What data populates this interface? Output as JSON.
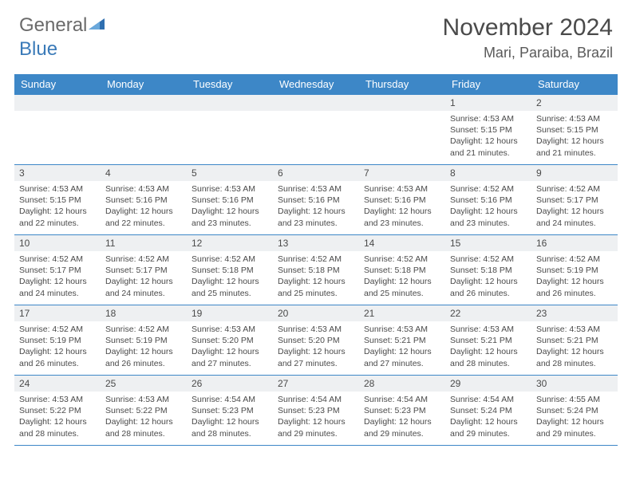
{
  "branding": {
    "text1": "General",
    "text2": "Blue",
    "logo_color": "#2f6fb0"
  },
  "header": {
    "month_title": "November 2024",
    "location": "Mari, Paraiba, Brazil"
  },
  "colors": {
    "header_bg": "#3d87c7",
    "header_text": "#ffffff",
    "daynum_bg": "#eef0f2",
    "text": "#4a4a4a",
    "border": "#3d87c7"
  },
  "weekdays": [
    "Sunday",
    "Monday",
    "Tuesday",
    "Wednesday",
    "Thursday",
    "Friday",
    "Saturday"
  ],
  "weeks": [
    [
      {
        "n": "",
        "sunrise": "",
        "sunset": "",
        "daylight": ""
      },
      {
        "n": "",
        "sunrise": "",
        "sunset": "",
        "daylight": ""
      },
      {
        "n": "",
        "sunrise": "",
        "sunset": "",
        "daylight": ""
      },
      {
        "n": "",
        "sunrise": "",
        "sunset": "",
        "daylight": ""
      },
      {
        "n": "",
        "sunrise": "",
        "sunset": "",
        "daylight": ""
      },
      {
        "n": "1",
        "sunrise": "Sunrise: 4:53 AM",
        "sunset": "Sunset: 5:15 PM",
        "daylight": "Daylight: 12 hours and 21 minutes."
      },
      {
        "n": "2",
        "sunrise": "Sunrise: 4:53 AM",
        "sunset": "Sunset: 5:15 PM",
        "daylight": "Daylight: 12 hours and 21 minutes."
      }
    ],
    [
      {
        "n": "3",
        "sunrise": "Sunrise: 4:53 AM",
        "sunset": "Sunset: 5:15 PM",
        "daylight": "Daylight: 12 hours and 22 minutes."
      },
      {
        "n": "4",
        "sunrise": "Sunrise: 4:53 AM",
        "sunset": "Sunset: 5:16 PM",
        "daylight": "Daylight: 12 hours and 22 minutes."
      },
      {
        "n": "5",
        "sunrise": "Sunrise: 4:53 AM",
        "sunset": "Sunset: 5:16 PM",
        "daylight": "Daylight: 12 hours and 23 minutes."
      },
      {
        "n": "6",
        "sunrise": "Sunrise: 4:53 AM",
        "sunset": "Sunset: 5:16 PM",
        "daylight": "Daylight: 12 hours and 23 minutes."
      },
      {
        "n": "7",
        "sunrise": "Sunrise: 4:53 AM",
        "sunset": "Sunset: 5:16 PM",
        "daylight": "Daylight: 12 hours and 23 minutes."
      },
      {
        "n": "8",
        "sunrise": "Sunrise: 4:52 AM",
        "sunset": "Sunset: 5:16 PM",
        "daylight": "Daylight: 12 hours and 23 minutes."
      },
      {
        "n": "9",
        "sunrise": "Sunrise: 4:52 AM",
        "sunset": "Sunset: 5:17 PM",
        "daylight": "Daylight: 12 hours and 24 minutes."
      }
    ],
    [
      {
        "n": "10",
        "sunrise": "Sunrise: 4:52 AM",
        "sunset": "Sunset: 5:17 PM",
        "daylight": "Daylight: 12 hours and 24 minutes."
      },
      {
        "n": "11",
        "sunrise": "Sunrise: 4:52 AM",
        "sunset": "Sunset: 5:17 PM",
        "daylight": "Daylight: 12 hours and 24 minutes."
      },
      {
        "n": "12",
        "sunrise": "Sunrise: 4:52 AM",
        "sunset": "Sunset: 5:18 PM",
        "daylight": "Daylight: 12 hours and 25 minutes."
      },
      {
        "n": "13",
        "sunrise": "Sunrise: 4:52 AM",
        "sunset": "Sunset: 5:18 PM",
        "daylight": "Daylight: 12 hours and 25 minutes."
      },
      {
        "n": "14",
        "sunrise": "Sunrise: 4:52 AM",
        "sunset": "Sunset: 5:18 PM",
        "daylight": "Daylight: 12 hours and 25 minutes."
      },
      {
        "n": "15",
        "sunrise": "Sunrise: 4:52 AM",
        "sunset": "Sunset: 5:18 PM",
        "daylight": "Daylight: 12 hours and 26 minutes."
      },
      {
        "n": "16",
        "sunrise": "Sunrise: 4:52 AM",
        "sunset": "Sunset: 5:19 PM",
        "daylight": "Daylight: 12 hours and 26 minutes."
      }
    ],
    [
      {
        "n": "17",
        "sunrise": "Sunrise: 4:52 AM",
        "sunset": "Sunset: 5:19 PM",
        "daylight": "Daylight: 12 hours and 26 minutes."
      },
      {
        "n": "18",
        "sunrise": "Sunrise: 4:52 AM",
        "sunset": "Sunset: 5:19 PM",
        "daylight": "Daylight: 12 hours and 26 minutes."
      },
      {
        "n": "19",
        "sunrise": "Sunrise: 4:53 AM",
        "sunset": "Sunset: 5:20 PM",
        "daylight": "Daylight: 12 hours and 27 minutes."
      },
      {
        "n": "20",
        "sunrise": "Sunrise: 4:53 AM",
        "sunset": "Sunset: 5:20 PM",
        "daylight": "Daylight: 12 hours and 27 minutes."
      },
      {
        "n": "21",
        "sunrise": "Sunrise: 4:53 AM",
        "sunset": "Sunset: 5:21 PM",
        "daylight": "Daylight: 12 hours and 27 minutes."
      },
      {
        "n": "22",
        "sunrise": "Sunrise: 4:53 AM",
        "sunset": "Sunset: 5:21 PM",
        "daylight": "Daylight: 12 hours and 28 minutes."
      },
      {
        "n": "23",
        "sunrise": "Sunrise: 4:53 AM",
        "sunset": "Sunset: 5:21 PM",
        "daylight": "Daylight: 12 hours and 28 minutes."
      }
    ],
    [
      {
        "n": "24",
        "sunrise": "Sunrise: 4:53 AM",
        "sunset": "Sunset: 5:22 PM",
        "daylight": "Daylight: 12 hours and 28 minutes."
      },
      {
        "n": "25",
        "sunrise": "Sunrise: 4:53 AM",
        "sunset": "Sunset: 5:22 PM",
        "daylight": "Daylight: 12 hours and 28 minutes."
      },
      {
        "n": "26",
        "sunrise": "Sunrise: 4:54 AM",
        "sunset": "Sunset: 5:23 PM",
        "daylight": "Daylight: 12 hours and 28 minutes."
      },
      {
        "n": "27",
        "sunrise": "Sunrise: 4:54 AM",
        "sunset": "Sunset: 5:23 PM",
        "daylight": "Daylight: 12 hours and 29 minutes."
      },
      {
        "n": "28",
        "sunrise": "Sunrise: 4:54 AM",
        "sunset": "Sunset: 5:23 PM",
        "daylight": "Daylight: 12 hours and 29 minutes."
      },
      {
        "n": "29",
        "sunrise": "Sunrise: 4:54 AM",
        "sunset": "Sunset: 5:24 PM",
        "daylight": "Daylight: 12 hours and 29 minutes."
      },
      {
        "n": "30",
        "sunrise": "Sunrise: 4:55 AM",
        "sunset": "Sunset: 5:24 PM",
        "daylight": "Daylight: 12 hours and 29 minutes."
      }
    ]
  ]
}
